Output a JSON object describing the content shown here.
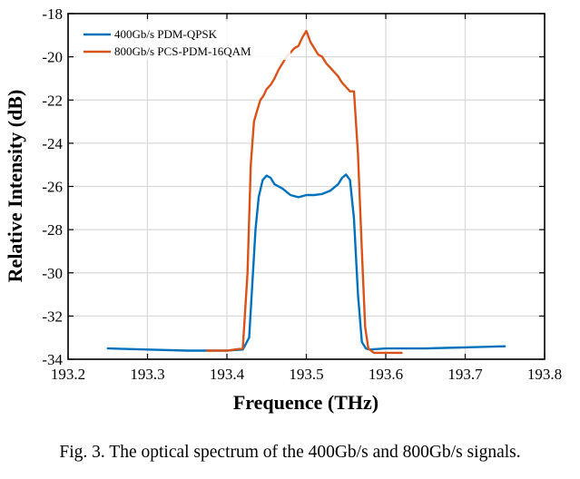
{
  "chart_data": {
    "type": "line",
    "title": "",
    "xlabel": "Frequence (THz)",
    "ylabel": "Relative Intensity (dB)",
    "xlim": [
      193.2,
      193.8
    ],
    "ylim": [
      -34,
      -18
    ],
    "xticks": [
      193.2,
      193.3,
      193.4,
      193.5,
      193.6,
      193.7,
      193.8
    ],
    "yticks": [
      -34,
      -32,
      -30,
      -28,
      -26,
      -24,
      -22,
      -20,
      -18
    ],
    "xtick_labels": [
      "193.2",
      "193.3",
      "193.4",
      "193.5",
      "193.6",
      "193.7",
      "193.8"
    ],
    "ytick_labels": [
      "-34",
      "-32",
      "-30",
      "-28",
      "-26",
      "-24",
      "-22",
      "-20",
      "-18"
    ],
    "grid": true,
    "legend_position": "top-left",
    "series": [
      {
        "name": "400Gb/s PDM-QPSK",
        "color": "#0072BD",
        "x": [
          193.25,
          193.3,
          193.35,
          193.4,
          193.42,
          193.428,
          193.432,
          193.436,
          193.44,
          193.445,
          193.45,
          193.455,
          193.46,
          193.465,
          193.47,
          193.48,
          193.49,
          193.5,
          193.51,
          193.52,
          193.53,
          193.54,
          193.545,
          193.55,
          193.555,
          193.56,
          193.565,
          193.57,
          193.575,
          193.58,
          193.6,
          193.65,
          193.7,
          193.75
        ],
        "y": [
          -33.5,
          -33.55,
          -33.6,
          -33.6,
          -33.55,
          -33.0,
          -30.5,
          -28.0,
          -26.5,
          -25.7,
          -25.5,
          -25.6,
          -25.9,
          -26.0,
          -26.1,
          -26.4,
          -26.5,
          -26.4,
          -26.4,
          -26.35,
          -26.2,
          -25.9,
          -25.6,
          -25.45,
          -25.7,
          -27.5,
          -31.0,
          -33.2,
          -33.5,
          -33.55,
          -33.5,
          -33.5,
          -33.45,
          -33.4
        ]
      },
      {
        "name": "800Gb/s PCS-PDM-16QAM",
        "color": "#D95319",
        "x": [
          193.375,
          193.4,
          193.42,
          193.426,
          193.43,
          193.434,
          193.438,
          193.442,
          193.446,
          193.45,
          193.455,
          193.46,
          193.465,
          193.47,
          193.475,
          193.48,
          193.485,
          193.49,
          193.495,
          193.5,
          193.505,
          193.51,
          193.515,
          193.52,
          193.525,
          193.53,
          193.535,
          193.54,
          193.545,
          193.55,
          193.555,
          193.56,
          193.565,
          193.57,
          193.574,
          193.578,
          193.585,
          193.6,
          193.62
        ],
        "y": [
          -33.6,
          -33.6,
          -33.5,
          -30.0,
          -25.0,
          -23.0,
          -22.5,
          -22.0,
          -21.8,
          -21.5,
          -21.3,
          -21.0,
          -20.6,
          -20.3,
          -20.0,
          -19.8,
          -19.6,
          -19.5,
          -19.1,
          -18.8,
          -19.3,
          -19.6,
          -19.9,
          -20.0,
          -20.3,
          -20.5,
          -20.7,
          -20.9,
          -21.2,
          -21.4,
          -21.6,
          -21.6,
          -24.5,
          -29.0,
          -32.5,
          -33.5,
          -33.7,
          -33.7,
          -33.7
        ]
      }
    ]
  },
  "caption": "Fig. 3. The optical spectrum of the 400Gb/s and 800Gb/s signals."
}
